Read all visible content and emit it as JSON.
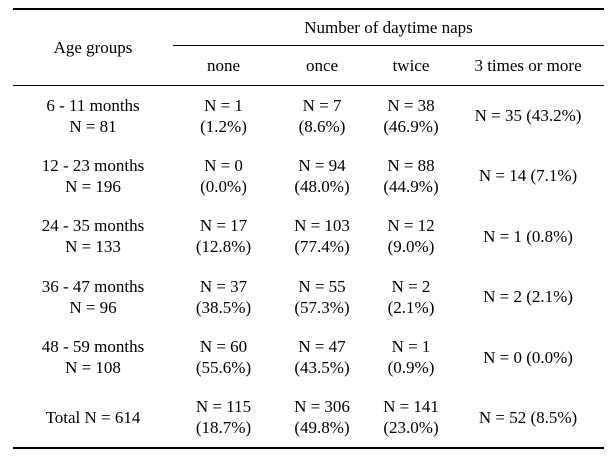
{
  "table": {
    "age_header": "Age groups",
    "group_header": "Number of daytime naps",
    "columns": [
      "none",
      "once",
      "twice",
      "3 times or more"
    ],
    "rows": [
      {
        "age": [
          "6 - 11 months",
          "N = 81"
        ],
        "none": [
          "N = 1",
          "(1.2%)"
        ],
        "once": [
          "N = 7",
          "(8.6%)"
        ],
        "twice": [
          "N = 38",
          "(46.9%)"
        ],
        "more": "N = 35 (43.2%)"
      },
      {
        "age": [
          "12 - 23 months",
          "N = 196"
        ],
        "none": [
          "N = 0",
          "(0.0%)"
        ],
        "once": [
          "N = 94",
          "(48.0%)"
        ],
        "twice": [
          "N = 88",
          "(44.9%)"
        ],
        "more": "N = 14 (7.1%)"
      },
      {
        "age": [
          "24 - 35 months",
          "N = 133"
        ],
        "none": [
          "N = 17",
          "(12.8%)"
        ],
        "once": [
          "N = 103",
          "(77.4%)"
        ],
        "twice": [
          "N = 12",
          "(9.0%)"
        ],
        "more": "N = 1 (0.8%)"
      },
      {
        "age": [
          "36 - 47 months",
          "N = 96"
        ],
        "none": [
          "N = 37",
          "(38.5%)"
        ],
        "once": [
          "N = 55",
          "(57.3%)"
        ],
        "twice": [
          "N = 2",
          "(2.1%)"
        ],
        "more": "N = 2 (2.1%)"
      },
      {
        "age": [
          "48 - 59 months",
          "N = 108"
        ],
        "none": [
          "N = 60",
          "(55.6%)"
        ],
        "once": [
          "N = 47",
          "(43.5%)"
        ],
        "twice": [
          "N = 1",
          "(0.9%)"
        ],
        "more": "N = 0 (0.0%)"
      },
      {
        "age": [
          "Total N = 614"
        ],
        "none": [
          "N = 115",
          "(18.7%)"
        ],
        "once": [
          "N = 306",
          "(49.8%)"
        ],
        "twice": [
          "N = 141",
          "(23.0%)"
        ],
        "more": "N = 52 (8.5%)"
      }
    ]
  }
}
